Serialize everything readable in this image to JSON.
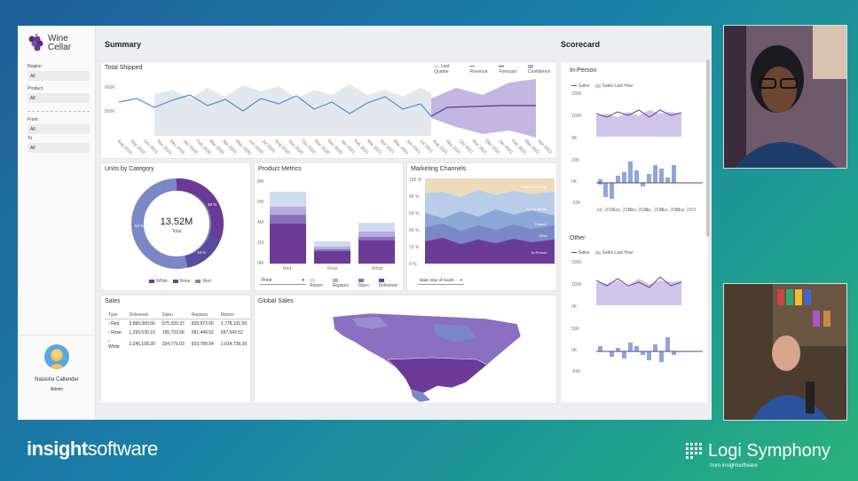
{
  "app": {
    "logo_text_1": "Wine",
    "logo_text_2": "Cellar"
  },
  "sidebar": {
    "region_label": "Region",
    "region_value": "All",
    "product_label": "Product",
    "product_value": "All",
    "from_label": "From",
    "from_value": "All",
    "to_label": "To",
    "to_value": "All",
    "user_name": "Natasha Callender",
    "user_role": "Admin"
  },
  "summary": {
    "title": "Summary",
    "total_shipped": {
      "title": "Total Shipped",
      "legend": [
        "Last Quarter",
        "Revenue",
        "Forecast",
        "Confidence"
      ],
      "y_ticks": [
        "600K",
        "500K"
      ],
      "x_ticks": [
        "Aug 2019",
        "Sep 2019",
        "Oct 2019",
        "Nov 2019",
        "Dec 2019",
        "Jan 2020",
        "Feb 2020",
        "Mar 2020",
        "Apr 2020",
        "May 2020",
        "Jun 2020",
        "Jul 2020",
        "Aug 2020",
        "Sep 2020",
        "Oct 2020",
        "Nov 2020",
        "Dec 2020",
        "Jan 2021",
        "Feb 2021",
        "Mar 2021",
        "Apr 2021",
        "May 2021",
        "Jun 2021",
        "Jul 2021",
        "Aug 2021",
        "Sep 2021",
        "Oct 2021",
        "Nov 2021",
        "Dec 2021",
        "Jan 2022",
        "Feb 2022",
        "Mar 2022",
        "Apr 2022"
      ]
    },
    "units_by_category": {
      "title": "Units by Category",
      "center_value": "13.52M",
      "center_label": "Total",
      "slice_labels": [
        "30 %",
        "18 %",
        "52 %"
      ],
      "legend": [
        "White",
        "Rose",
        "Red"
      ]
    },
    "product_metrics": {
      "title": "Product Metrics",
      "y_ticks": [
        "8M",
        "6M",
        "4M",
        "2M",
        "0M"
      ],
      "categories": [
        "Red",
        "Rose",
        "White"
      ],
      "dropdown": "Price",
      "legend": [
        "Return",
        "Replace",
        "Open",
        "Delivered"
      ]
    },
    "marketing_channels": {
      "title": "Marketing Channels",
      "y_ticks": [
        "100 %",
        "80 %",
        "60 %",
        "40 %",
        "20 %",
        "0 %"
      ],
      "band_labels": [
        "Print Advertising",
        "Social Media",
        "Printed",
        "Other",
        "In-Person"
      ],
      "dropdown": "Date: Day of month"
    },
    "sales": {
      "title": "Sales",
      "columns": [
        "Type",
        "Delivered",
        "Open",
        "Replace",
        "Return"
      ],
      "rows": [
        [
          "Red",
          "3,860,569.66",
          "575,320.37",
          "839,973.00",
          "1,778,131.59"
        ],
        [
          "Rose",
          "1,293,530.15",
          "195,703.56",
          "281,449.52",
          "597,542.52"
        ],
        [
          "White",
          "2,245,108.30",
          "334,779.03",
          "503,789.54",
          "1,014,728.39"
        ]
      ]
    },
    "global_sales": {
      "title": "Global Sales"
    }
  },
  "scorecard": {
    "title": "Scorecard",
    "sections": [
      {
        "title": "In-Person",
        "legend": [
          "Sales",
          "Sales Last Year"
        ],
        "top_ticks": [
          "200K",
          "100K",
          "0K"
        ],
        "bottom_ticks": [
          "20K",
          "0K",
          "-20K"
        ],
        "x_ticks": [
          "Jul, 2020",
          "Sep, 2020",
          "Nov, 2020",
          "Jan, 2021",
          "Mar, 2021",
          "May, 2021",
          "Jul, 2021"
        ]
      },
      {
        "title": "Other",
        "legend": [
          "Sales",
          "Sales Last Year"
        ],
        "top_ticks": [
          "200K",
          "100K",
          "0K"
        ],
        "bottom_ticks": [
          "50K",
          "0K",
          "-50K"
        ],
        "x_ticks": [
          "Jul, 2020",
          "Sep, 2020",
          "Nov, 2020",
          "Jan, 2021",
          "Mar, 2021",
          "May, 2021",
          "Jul, 2021"
        ]
      }
    ]
  },
  "branding": {
    "left_1": "insight",
    "left_2": "software",
    "right": "Logi Symphony",
    "right_sub": "from insightsoftware"
  },
  "colors": {
    "purple_dark": "#6b3a96",
    "purple_mid": "#8b6fc0",
    "blue_mid": "#7b88c7",
    "lavender": "#b9a9dc",
    "light_blue": "#cfdbef",
    "line_blue": "#4a8fd6"
  }
}
